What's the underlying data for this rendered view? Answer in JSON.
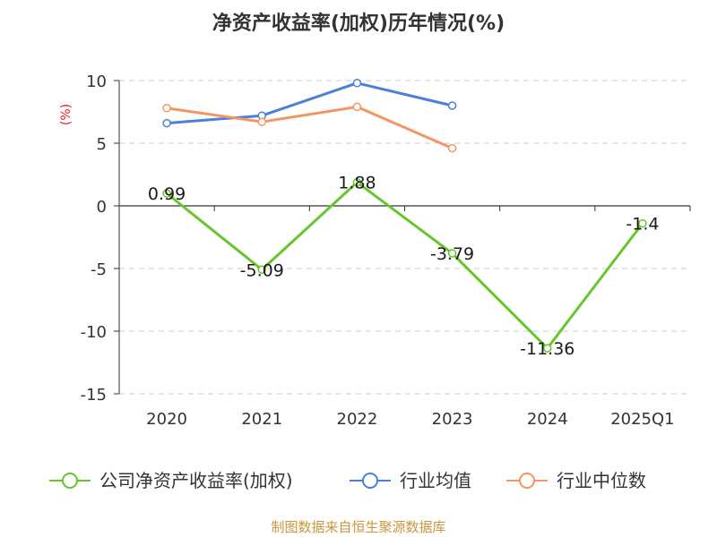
{
  "header": {
    "title": "净资产收益率(加权)历年情况(%)"
  },
  "footer": {
    "source": "制图数据来自恒生聚源数据库"
  },
  "chart_data": {
    "type": "line",
    "title": "净资产收益率(加权)历年情况(%)",
    "ylabel": "(%)",
    "xlabel": "",
    "categories": [
      "2020",
      "2021",
      "2022",
      "2023",
      "2024",
      "2025Q1"
    ],
    "ylim": [
      -15,
      10
    ],
    "yticks": [
      10,
      5,
      0,
      -5,
      -10,
      -15
    ],
    "grid": true,
    "legend_position": "bottom",
    "series": [
      {
        "name": "公司净资产收益率(加权)",
        "color": "#66c62b",
        "values": [
          0.99,
          -5.09,
          1.88,
          -3.79,
          -11.36,
          -1.4
        ],
        "labels": [
          "0.99",
          "-5.09",
          "1.88",
          "-3.79",
          "-11.36",
          "-1.4"
        ]
      },
      {
        "name": "行业均值",
        "color": "#4a7fdc",
        "values": [
          6.6,
          7.2,
          9.8,
          8.0,
          null,
          null
        ]
      },
      {
        "name": "行业中位数",
        "color": "#f59563",
        "values": [
          7.8,
          6.7,
          7.9,
          4.6,
          null,
          null
        ]
      }
    ]
  }
}
